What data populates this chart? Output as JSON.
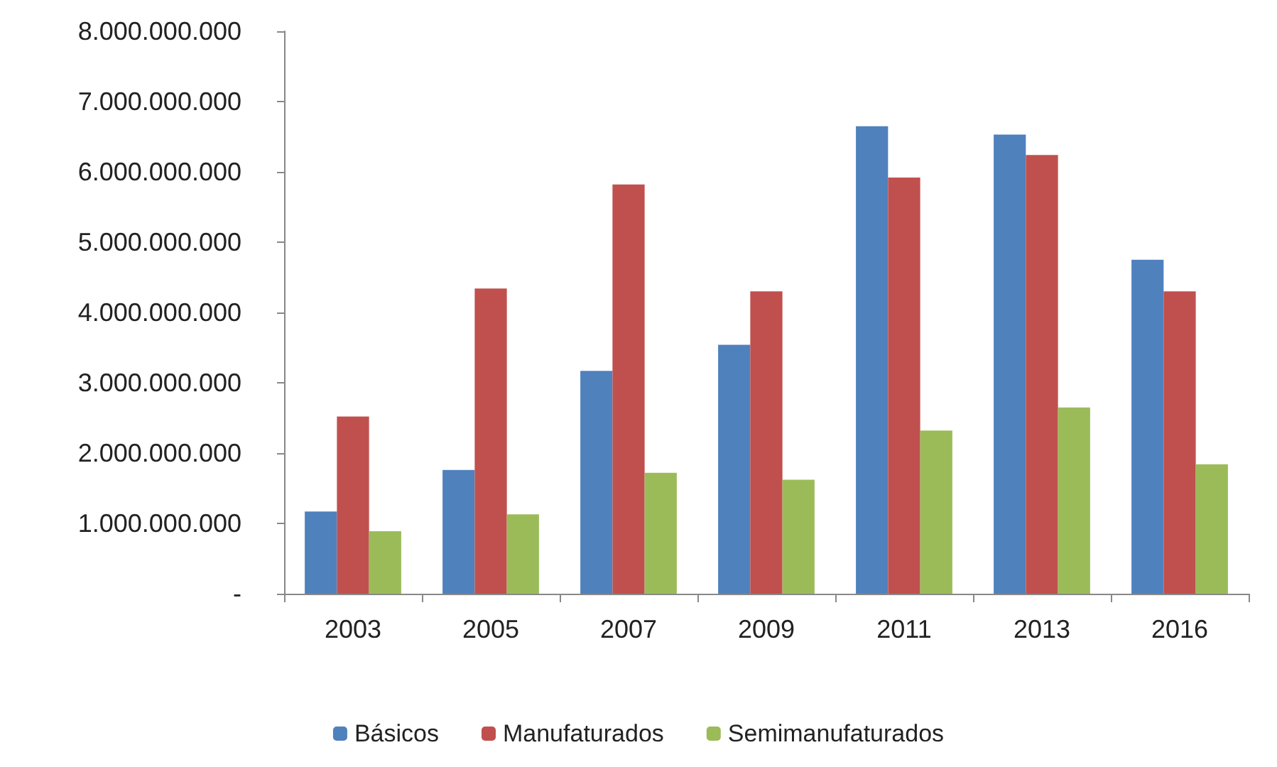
{
  "chart_data": {
    "type": "bar",
    "categories": [
      "2003",
      "2005",
      "2007",
      "2009",
      "2011",
      "2013",
      "2016"
    ],
    "series": [
      {
        "name": "Básicos",
        "color": "#4f81bd",
        "values": [
          1170000000,
          1760000000,
          3170000000,
          3540000000,
          6650000000,
          6530000000,
          4750000000
        ]
      },
      {
        "name": "Manufaturados",
        "color": "#c0504d",
        "values": [
          2520000000,
          4340000000,
          5820000000,
          4300000000,
          5920000000,
          6240000000,
          4300000000
        ]
      },
      {
        "name": "Semimanufaturados",
        "color": "#9bbb59",
        "values": [
          890000000,
          1130000000,
          1720000000,
          1620000000,
          2320000000,
          2650000000,
          1840000000
        ]
      }
    ],
    "ylim": [
      0,
      8000000000
    ],
    "yticks": [
      {
        "value": 0,
        "label": "-"
      },
      {
        "value": 1000000000,
        "label": "1.000.000.000"
      },
      {
        "value": 2000000000,
        "label": "2.000.000.000"
      },
      {
        "value": 3000000000,
        "label": "3.000.000.000"
      },
      {
        "value": 4000000000,
        "label": "4.000.000.000"
      },
      {
        "value": 5000000000,
        "label": "5.000.000.000"
      },
      {
        "value": 6000000000,
        "label": "6.000.000.000"
      },
      {
        "value": 7000000000,
        "label": "7.000.000.000"
      },
      {
        "value": 8000000000,
        "label": "8.000.000.000"
      }
    ],
    "grid": false,
    "legend": "bottom"
  }
}
